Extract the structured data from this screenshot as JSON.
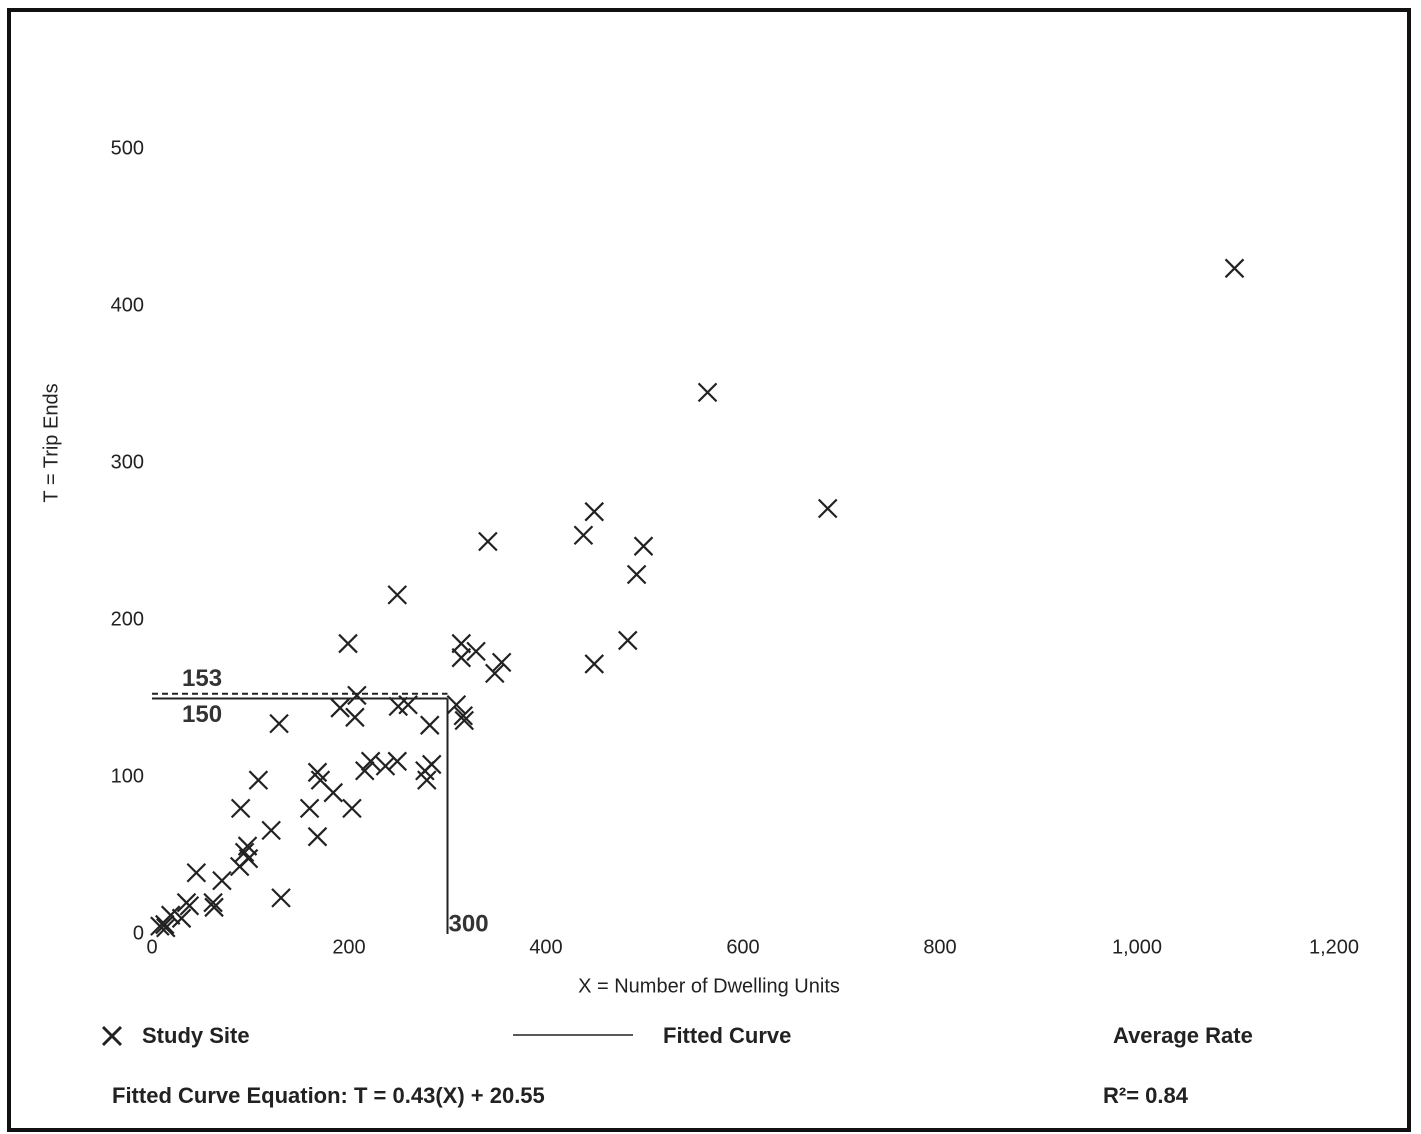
{
  "chart_data": {
    "type": "scatter",
    "x_label": "X = Number of Dwelling Units",
    "y_label": "T = Trip Ends",
    "xlim": [
      0,
      1200
    ],
    "ylim": [
      0,
      500
    ],
    "xticks": [
      0,
      200,
      400,
      600,
      800,
      {
        "value": 1000,
        "label": "1,000"
      },
      {
        "value": 1200,
        "label": "1,200"
      }
    ],
    "yticks": [
      0,
      100,
      200,
      300,
      400,
      500
    ],
    "series": [
      {
        "name": "Study Site",
        "color": "#222222",
        "x": [
          1099,
          564,
          686,
          449,
          438,
          341,
          499,
          492,
          249,
          199,
          483,
          314,
          329,
          314,
          355,
          449,
          348,
          208,
          191,
          206,
          250,
          260,
          309,
          316,
          317,
          282,
          129,
          168,
          171,
          108,
          222,
          216,
          237,
          249,
          284,
          277,
          279,
          184,
          160,
          203,
          90,
          121,
          168,
          97,
          94,
          98,
          89,
          71,
          45,
          35,
          38,
          62,
          63,
          131,
          30,
          19,
          13,
          8,
          14
        ],
        "values": [
          424,
          345,
          271,
          269,
          254,
          250,
          247,
          229,
          216,
          185,
          187,
          185,
          180,
          176,
          173,
          172,
          166,
          152,
          144,
          138,
          145,
          146,
          146,
          139,
          136,
          133,
          134,
          103,
          98,
          98,
          110,
          104,
          107,
          110,
          108,
          104,
          98,
          90,
          80,
          80,
          80,
          66,
          62,
          56,
          52,
          48,
          43,
          34,
          39,
          20,
          18,
          20,
          17,
          23,
          10,
          12,
          6,
          5,
          4
        ]
      }
    ],
    "legend": [
      "Fitted Curve",
      "Average Rate"
    ],
    "reference_x": 300,
    "reference_y": [
      153,
      150
    ],
    "equation": "Fitted Curve Equation: T = 0.43(X) + 20.55",
    "r_squared": "R²= 0.84"
  }
}
